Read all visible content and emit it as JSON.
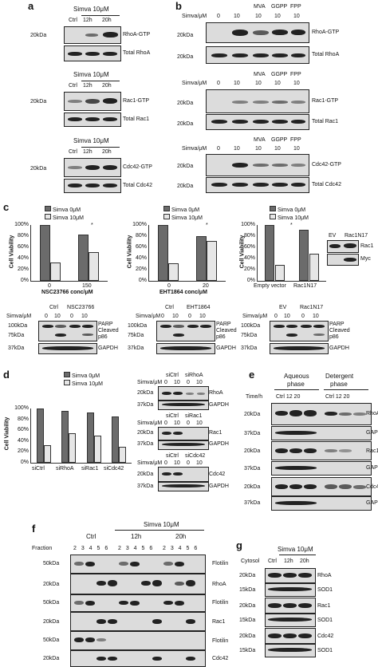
{
  "panels": {
    "a": "a",
    "b": "b",
    "c": "c",
    "d": "d",
    "e": "e",
    "f": "f",
    "g": "g"
  },
  "common": {
    "simva10": "Simva 10μM",
    "ctrl": "Ctrl",
    "h12": "12h",
    "h20": "20h",
    "simva_um": "Simva/μM",
    "zero": "0",
    "ten": "10",
    "k20": "20kDa",
    "k37": "37kDa",
    "k50": "50kDa",
    "k75": "75kDa",
    "k100": "100kDa",
    "k15": "15kDa",
    "mva": "MVA",
    "ggpp": "GGPP",
    "fpp": "FPP",
    "parp": "PARP",
    "cleaved": "Cleaved",
    "p86": "p86",
    "gapdh": "GAPDH",
    "cell_viability": "Cell Viability",
    "leg0": "Simva 0μM",
    "leg10": "Simva 10μM",
    "star": "*"
  },
  "a": {
    "rhoa_gtp": "RhoA-GTP",
    "total_rhoa": "Total RhoA",
    "rac1_gtp": "Rac1-GTP",
    "total_rac1": "Total Rac1",
    "cdc42_gtp": "Cdc42-GTP",
    "total_cdc42": "Total Cdc42"
  },
  "c": {
    "x1": "NSC23766 conc/μM",
    "x2": "EHT1864 conc/μM",
    "x1a": "0",
    "x1b": "150",
    "x2a": "0",
    "x2b": "20",
    "x3a": "Empty vector",
    "x3b": "Rac1N17",
    "nsc": "NSC23766",
    "eht": "EHT1864",
    "ev": "EV",
    "rac1n17": "Rac1N17",
    "rac1": "Rac1",
    "myc": "Myc"
  },
  "d": {
    "sictrl": "siCtrl",
    "sirhoa": "siRhoA",
    "sirac1": "siRac1",
    "sicdc42": "siCdc42",
    "rhoa": "RhoA",
    "rac1": "Rac1",
    "cdc42": "Cdc42"
  },
  "e": {
    "aqueous": "Aqueous",
    "phase": "phase",
    "detergent": "Detergent",
    "time_h": "Time/h",
    "ctrl1220": "Ctrl 12 20",
    "rhoa": "RhoA",
    "rac1": "Rac1",
    "cdc42": "Cdc42"
  },
  "f": {
    "fraction": "Fraction",
    "fr": "2 3 4 5 6",
    "flotilin": "Flotilin",
    "rhoa": "RhoA",
    "rac1": "Rac1",
    "cdc42": "Cdc42"
  },
  "g": {
    "cytosol": "Cytosol",
    "rhoa": "RhoA",
    "rac1": "Rac1",
    "cdc42": "Cdc42",
    "sod1": "SOD1"
  },
  "charts": {
    "c1": {
      "ylim": [
        0,
        100
      ],
      "yticks": [
        "0%",
        "20%",
        "40%",
        "60%",
        "80%",
        "100%"
      ],
      "categories": [
        "0",
        "150"
      ],
      "series": [
        {
          "name": "Simva 0μM",
          "values": [
            100,
            83
          ]
        },
        {
          "name": "Simva 10μM",
          "values": [
            33,
            52
          ]
        }
      ]
    },
    "c2": {
      "ylim": [
        0,
        100
      ],
      "yticks": [
        "0%",
        "20%",
        "40%",
        "60%",
        "80%",
        "100%"
      ],
      "categories": [
        "0",
        "20"
      ],
      "series": [
        {
          "name": "Simva 0μM",
          "values": [
            100,
            80
          ]
        },
        {
          "name": "Simva 10μM",
          "values": [
            32,
            72
          ]
        }
      ]
    },
    "c3": {
      "ylim": [
        0,
        100
      ],
      "yticks": [
        "0%",
        "20%",
        "40%",
        "60%",
        "80%",
        "100%"
      ],
      "categories": [
        "Empty vector",
        "Rac1N17"
      ],
      "series": [
        {
          "name": "Simva 0μM",
          "values": [
            100,
            92
          ]
        },
        {
          "name": "Simva 10μM",
          "values": [
            29,
            48
          ]
        }
      ]
    },
    "d": {
      "ylim": [
        0,
        100
      ],
      "yticks": [
        "0%",
        "20%",
        "40%",
        "60%",
        "80%",
        "100%"
      ],
      "categories": [
        "siCtrl",
        "siRhoA",
        "siRac1",
        "siCdc42"
      ],
      "series": [
        {
          "name": "Simva 0μM",
          "values": [
            100,
            95,
            92,
            85
          ]
        },
        {
          "name": "Simva 10μM",
          "values": [
            32,
            55,
            50,
            30
          ]
        }
      ]
    }
  }
}
